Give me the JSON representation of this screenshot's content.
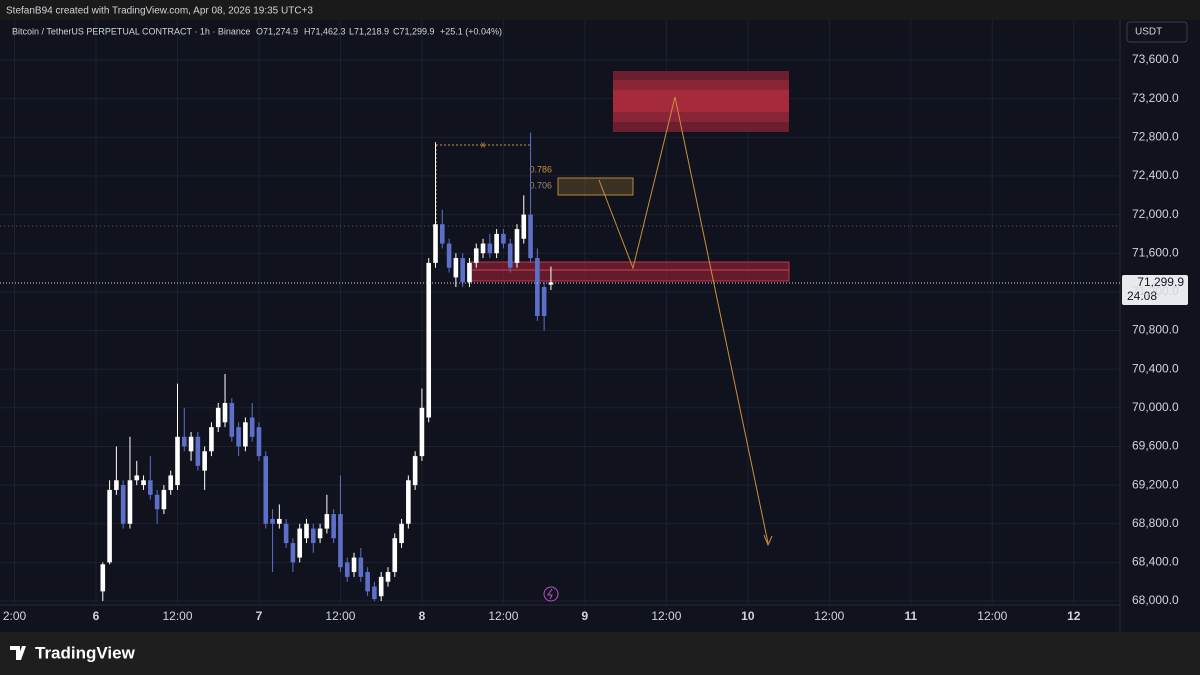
{
  "chart_data": {
    "type": "candlestick",
    "header": "StefanB94 created with TradingView.com, Apr 08, 2026 19:35 UTC+3",
    "title": "Bitcoin / TetherUS PERPETUAL CONTRACT · 1h · Binance",
    "legend_values": [
      "O71,274.9",
      "H71,462.3",
      "L71,218.9",
      "C71,299.9",
      "+25.1 (+0.04%)"
    ],
    "currency": "USDT",
    "last_value_label": "71,299.9",
    "countdown": "24:08",
    "brand": "TradingView",
    "fib_levels": [
      0.786,
      0.706
    ],
    "marker_label": "x",
    "up_color": "#ffffff",
    "down_color": "#5d6fc9",
    "grid": true,
    "x": [
      1,
      2,
      3,
      4,
      5,
      6,
      7,
      8,
      9,
      10,
      11,
      12,
      13,
      14,
      15,
      16,
      17,
      18,
      19,
      20,
      21,
      22,
      23,
      24,
      25,
      26,
      27,
      28,
      29,
      30,
      31,
      32,
      33,
      34,
      35,
      36,
      37,
      38,
      39,
      40,
      41,
      42,
      43,
      44,
      45,
      46,
      47,
      48,
      49,
      50,
      51,
      52,
      53,
      54,
      55,
      56,
      57,
      58,
      59,
      60,
      61,
      62,
      63,
      64,
      65,
      66,
      67
    ],
    "open": [
      68100,
      68400,
      69150,
      69200,
      68800,
      69250,
      69200,
      69250,
      69100,
      68950,
      69150,
      69200,
      69700,
      69550,
      69700,
      69350,
      69550,
      69800,
      69850,
      70050,
      69800,
      69600,
      69900,
      69800,
      69500,
      68850,
      68800,
      68800,
      68600,
      68450,
      68650,
      68750,
      68650,
      68750,
      68900,
      68900,
      68400,
      68300,
      68450,
      68300,
      68150,
      68050,
      68200,
      68300,
      68600,
      68800,
      69200,
      69500,
      69900,
      71500,
      71900,
      71700,
      71350,
      71550,
      71300,
      71500,
      71600,
      71700,
      71600,
      71800,
      71700,
      71500,
      71750,
      72000,
      71550,
      71250,
      71274.9
    ],
    "high": [
      68400,
      69250,
      69600,
      69250,
      69700,
      69450,
      69300,
      69500,
      69150,
      69200,
      69350,
      70250,
      70000,
      69750,
      69750,
      69600,
      69850,
      70050,
      70350,
      70100,
      69850,
      69900,
      70050,
      69850,
      69550,
      68950,
      69000,
      68850,
      68650,
      68800,
      68850,
      68800,
      68800,
      69100,
      68950,
      69300,
      68450,
      68500,
      68550,
      68350,
      68200,
      68300,
      68350,
      68700,
      68850,
      69300,
      69550,
      70200,
      71550,
      72750,
      72050,
      71750,
      71600,
      71600,
      71550,
      71700,
      71750,
      71800,
      71850,
      71850,
      71750,
      71900,
      72200,
      72850,
      71650,
      71300,
      71462.3
    ],
    "low": [
      68000,
      68380,
      69100,
      68750,
      68750,
      69200,
      69150,
      69050,
      68800,
      68900,
      69100,
      69150,
      69550,
      69450,
      69350,
      69150,
      69500,
      69750,
      69800,
      69650,
      69500,
      69550,
      69650,
      69450,
      68750,
      68300,
      68750,
      68550,
      68300,
      68400,
      68600,
      68500,
      68600,
      68700,
      68600,
      68300,
      68200,
      68250,
      68200,
      68050,
      68000,
      68000,
      68150,
      68250,
      68550,
      68750,
      69150,
      69450,
      69850,
      71450,
      71650,
      71400,
      71250,
      71250,
      71250,
      71450,
      71550,
      71550,
      71550,
      71650,
      71400,
      71450,
      71700,
      71500,
      70900,
      70800,
      71218.9
    ],
    "close": [
      68380,
      69150,
      69250,
      68800,
      69250,
      69300,
      69250,
      69100,
      68950,
      69150,
      69300,
      69700,
      69600,
      69700,
      69400,
      69550,
      69800,
      70000,
      70050,
      69700,
      69600,
      69850,
      69700,
      69500,
      68800,
      68800,
      68850,
      68600,
      68400,
      68750,
      68800,
      68600,
      68750,
      68900,
      68650,
      68350,
      68250,
      68450,
      68250,
      68100,
      68020,
      68250,
      68300,
      68650,
      68800,
      69250,
      69500,
      70000,
      71500,
      71900,
      71700,
      71450,
      71550,
      71300,
      71500,
      71650,
      71700,
      71600,
      71800,
      71700,
      71450,
      71850,
      72000,
      71550,
      70950,
      70950,
      71299.9
    ],
    "xlim": [
      -14.14,
      150.81
    ],
    "xticks": [
      {
        "value": -12,
        "label": "2:00"
      },
      {
        "value": 0,
        "label": "6"
      },
      {
        "value": 12,
        "label": "12:00"
      },
      {
        "value": 24,
        "label": "7"
      },
      {
        "value": 36,
        "label": "12:00"
      },
      {
        "value": 48,
        "label": "8"
      },
      {
        "value": 60,
        "label": "12:00"
      },
      {
        "value": 72,
        "label": "9"
      },
      {
        "value": 84,
        "label": "12:00"
      },
      {
        "value": 96,
        "label": "10"
      },
      {
        "value": 108,
        "label": "12:00"
      },
      {
        "value": 120,
        "label": "11"
      },
      {
        "value": 132,
        "label": "12:00"
      },
      {
        "value": 144,
        "label": "12"
      }
    ],
    "ylim": [
      67959,
      74014
    ],
    "yticks": [
      {
        "value": 73600,
        "label": "73,600.0"
      },
      {
        "value": 73200,
        "label": "73,200.0"
      },
      {
        "value": 72800,
        "label": "72,800.0"
      },
      {
        "value": 72400,
        "label": "72,400.0"
      },
      {
        "value": 72000,
        "label": "72,000.0"
      },
      {
        "value": 71600,
        "label": "71,600.0"
      },
      {
        "value": 71200,
        "label": "71,200.0"
      },
      {
        "value": 70800,
        "label": "70,800.0"
      },
      {
        "value": 70400,
        "label": "70,400.0"
      },
      {
        "value": 70000,
        "label": "70,000.0"
      },
      {
        "value": 69600,
        "label": "69,600.0"
      },
      {
        "value": 69200,
        "label": "69,200.0"
      },
      {
        "value": 68800,
        "label": "68,800.0"
      },
      {
        "value": 68400,
        "label": "68,400.0"
      },
      {
        "value": 68000,
        "label": "68,000.0"
      }
    ]
  }
}
